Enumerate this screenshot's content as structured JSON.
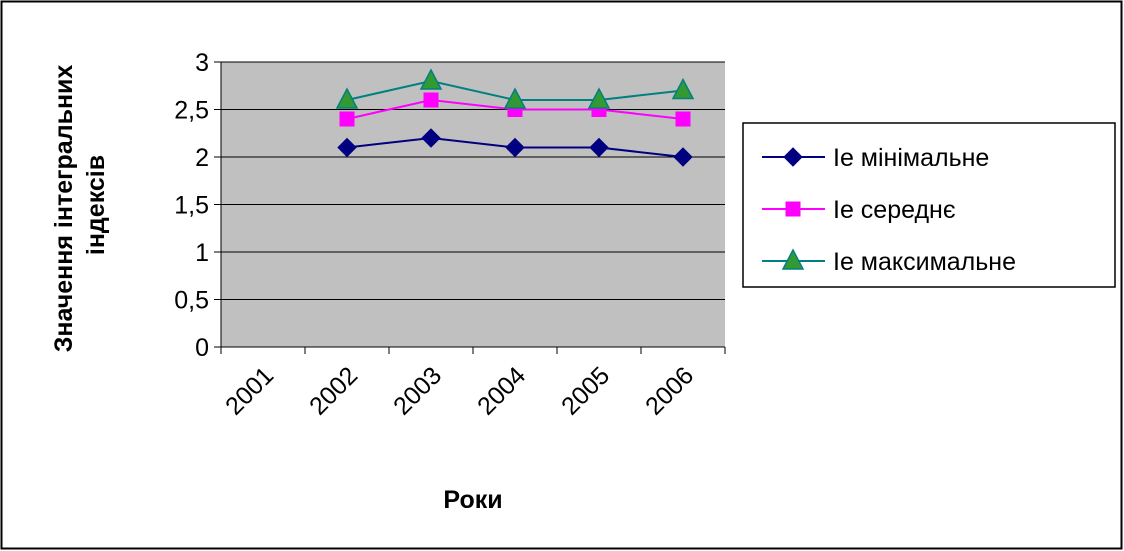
{
  "chart_data": {
    "type": "line",
    "title": "",
    "xlabel": "Роки",
    "ylabel_lines": [
      "Значення інтегральних",
      "індексів"
    ],
    "categories": [
      "2001",
      "2002",
      "2003",
      "2004",
      "2005",
      "2006"
    ],
    "y_ticks": [
      "0",
      "0,5",
      "1",
      "1,5",
      "2",
      "2,5",
      "3"
    ],
    "ylim": [
      0,
      3
    ],
    "grid": true,
    "legend_position": "right",
    "plot_background": "#c0c0c0",
    "series": [
      {
        "name": "Ie мінімальне",
        "color": "#000080",
        "marker": "diamond",
        "x": [
          "2002",
          "2003",
          "2004",
          "2005",
          "2006"
        ],
        "values": [
          2.1,
          2.2,
          2.1,
          2.1,
          2.0
        ]
      },
      {
        "name": "Ie середнє",
        "color": "#ff00ff",
        "marker": "square",
        "x": [
          "2002",
          "2003",
          "2004",
          "2005",
          "2006"
        ],
        "values": [
          2.4,
          2.6,
          2.5,
          2.5,
          2.4
        ]
      },
      {
        "name": "Ie максимальне",
        "color": "#008080",
        "marker_fill": "#339933",
        "marker": "triangle",
        "x": [
          "2002",
          "2003",
          "2004",
          "2005",
          "2006"
        ],
        "values": [
          2.6,
          2.8,
          2.6,
          2.6,
          2.7
        ]
      }
    ]
  }
}
